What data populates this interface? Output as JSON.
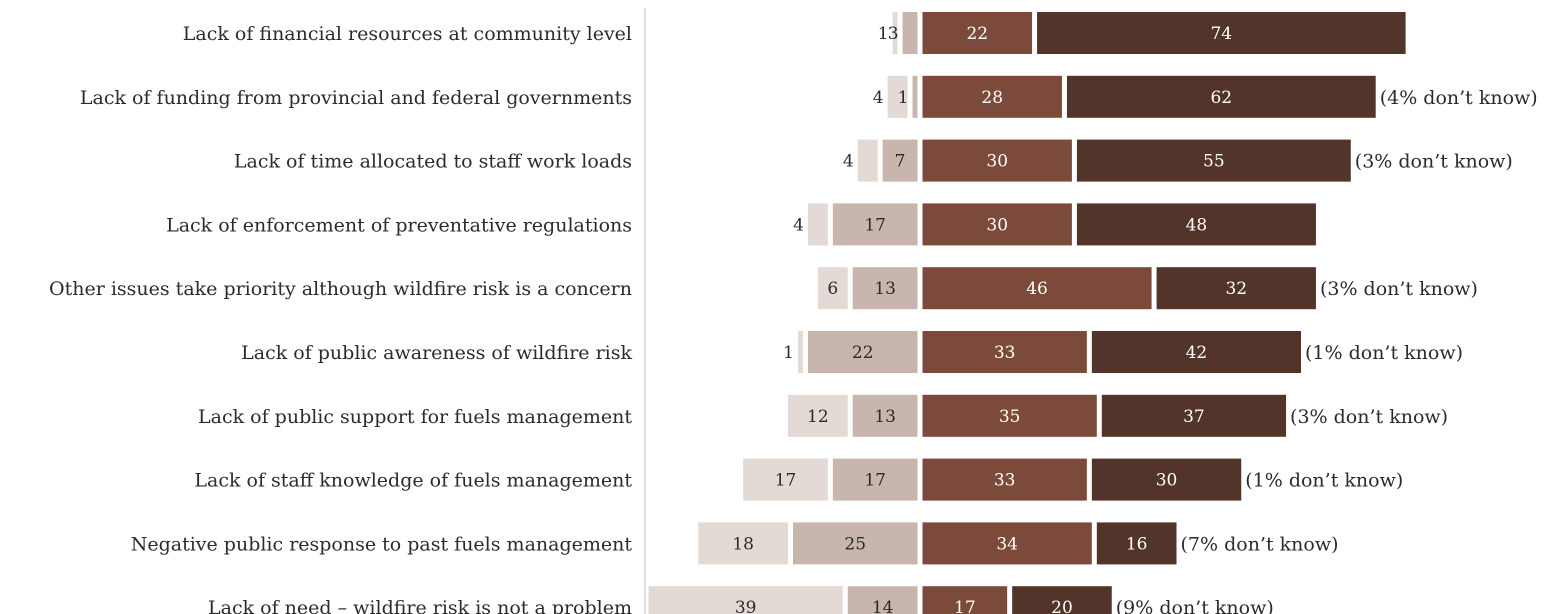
{
  "chart_data": {
    "type": "bar",
    "subtype": "diverging-stacked-horizontal",
    "title": "",
    "xlabel": "",
    "ylabel": "",
    "grid": false,
    "legend": "none",
    "colors": {
      "neg_outer": "#e3d9d5",
      "neg_inner": "#c7b5ae",
      "pos_inner": "#7c4a3a",
      "pos_outer": "#53342a",
      "axis": "#d6d6d6",
      "dark_text": "#2b2b2b",
      "light_text": "#ffffff"
    },
    "categories": [
      "Lack of financial resources at community level",
      "Lack of funding from provincial and federal governments",
      "Lack of time allocated to staff work loads",
      "Lack of enforcement of preventative regulations",
      "Other issues take priority although wildfire risk is a concern",
      "Lack of public awareness of wildfire risk",
      "Lack of public support for fuels management",
      "Lack of staff knowledge of fuels management",
      "Negative public response to past fuels management",
      "Lack of need – wildfire risk is not a problem"
    ],
    "series": [
      {
        "side": "negative",
        "level": "outer",
        "values": [
          1,
          4,
          4,
          4,
          6,
          1,
          12,
          17,
          18,
          39
        ]
      },
      {
        "side": "negative",
        "level": "inner",
        "values": [
          3,
          1,
          7,
          17,
          13,
          22,
          13,
          17,
          25,
          14
        ]
      },
      {
        "side": "positive",
        "level": "inner",
        "values": [
          22,
          28,
          30,
          30,
          46,
          33,
          35,
          33,
          34,
          17
        ]
      },
      {
        "side": "positive",
        "level": "outer",
        "values": [
          74,
          62,
          55,
          48,
          32,
          42,
          37,
          30,
          16,
          20
        ]
      }
    ],
    "notes": [
      "",
      "(4% don’t know)",
      "(3% don’t know)",
      "",
      "(3% don’t know)",
      "(1% don’t know)",
      "(3% don’t know)",
      "(1% don’t know)",
      "(7% don’t know)",
      "(9% don’t know)"
    ]
  }
}
